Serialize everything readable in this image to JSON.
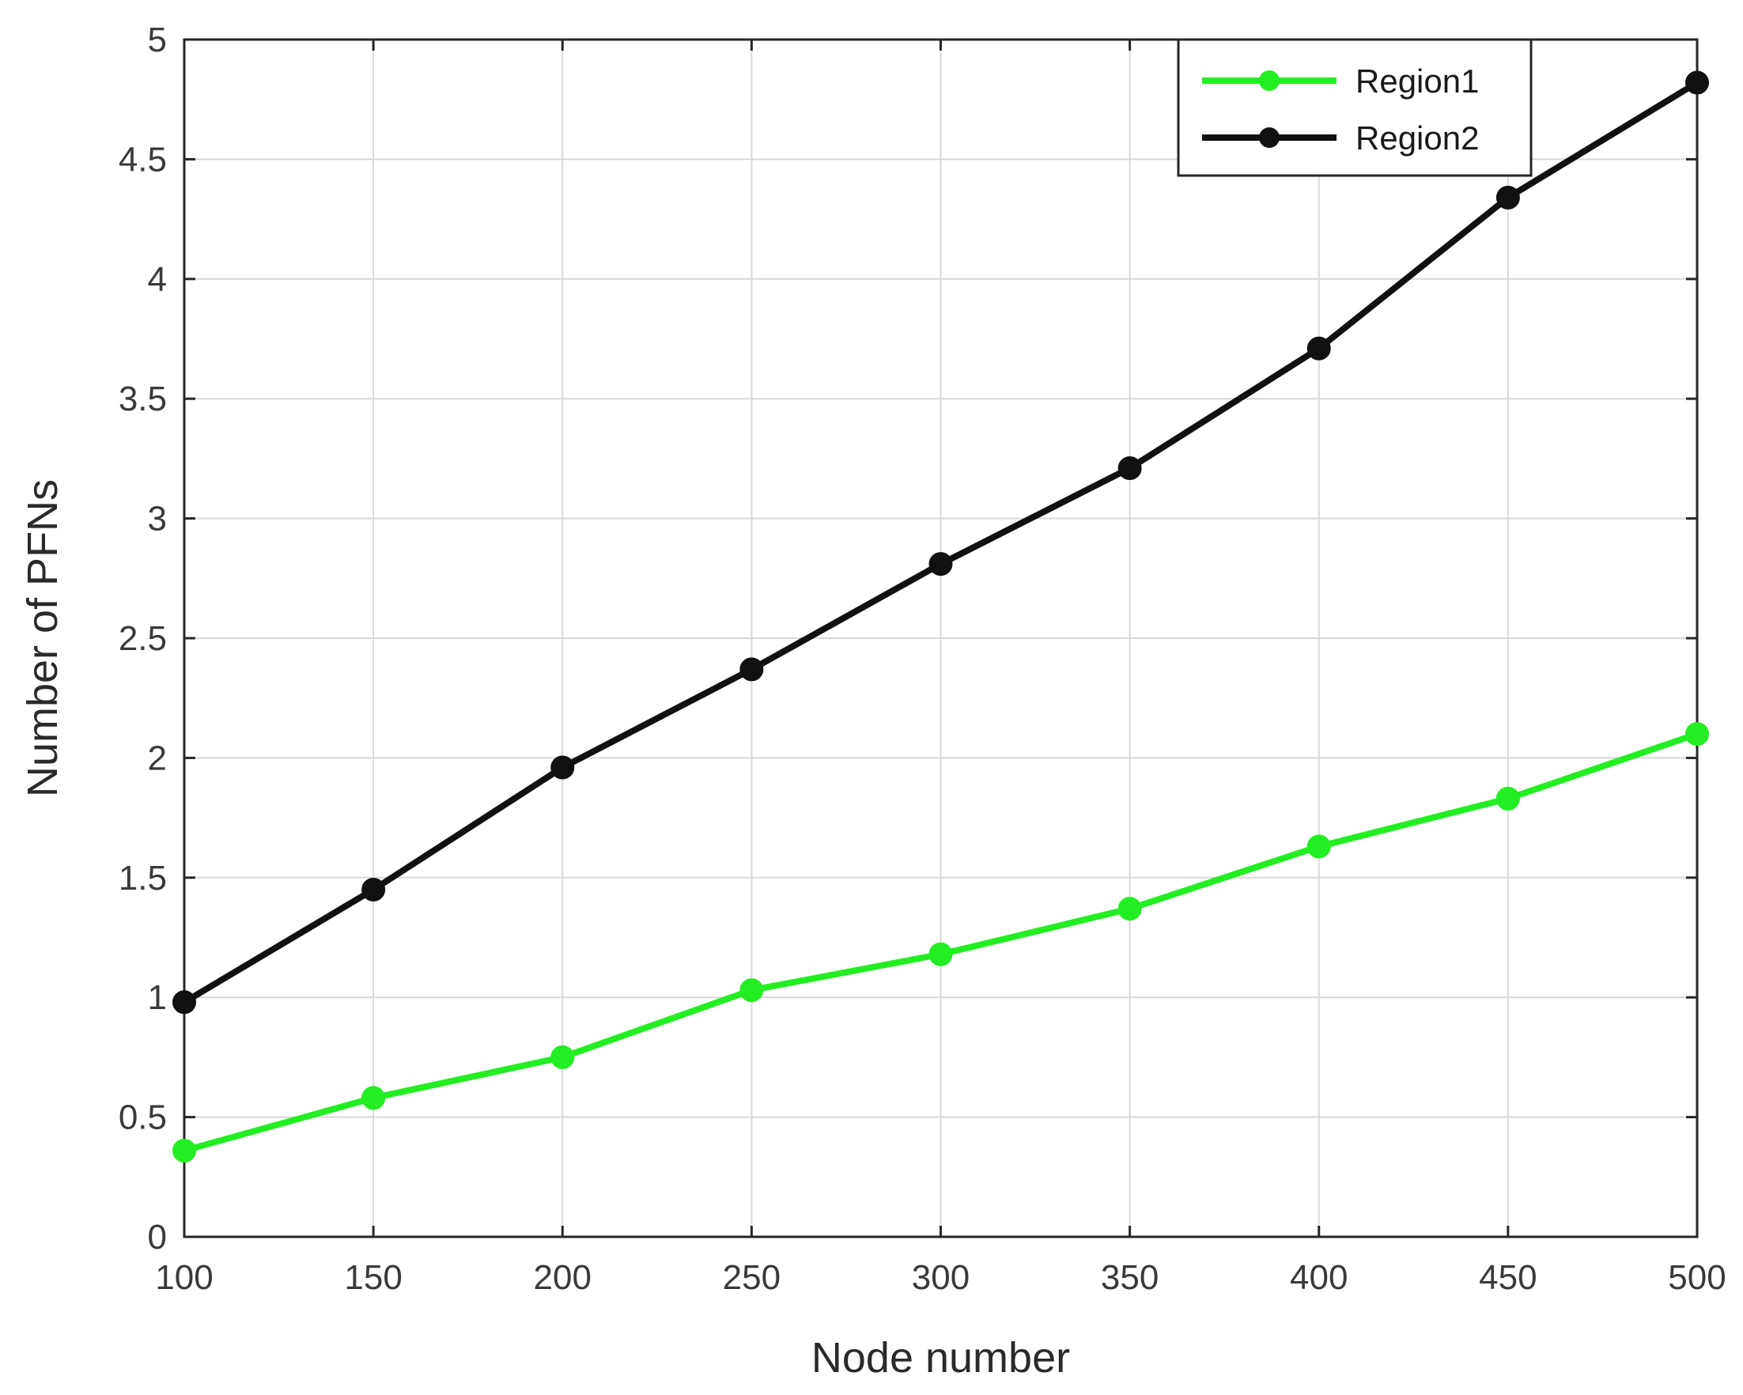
{
  "chart_data": {
    "type": "line",
    "title": "",
    "xlabel": "Node number",
    "ylabel": "Number of PFNs",
    "xlim": [
      100,
      500
    ],
    "ylim": [
      0,
      5
    ],
    "xticks": [
      100,
      150,
      200,
      250,
      300,
      350,
      400,
      450,
      500
    ],
    "xtick_labels": [
      "100",
      "150",
      "200",
      "250",
      "300",
      "350",
      "400",
      "450",
      "500"
    ],
    "yticks": [
      0,
      0.5,
      1,
      1.5,
      2,
      2.5,
      3,
      3.5,
      4,
      4.5,
      5
    ],
    "ytick_labels": [
      "0",
      "0.5",
      "1",
      "1.5",
      "2",
      "2.5",
      "3",
      "3.5",
      "4",
      "4.5",
      "5"
    ],
    "grid": true,
    "legend_position": "top-right",
    "x": [
      100,
      150,
      200,
      250,
      300,
      350,
      400,
      450,
      500
    ],
    "series": [
      {
        "name": "Region1",
        "color": "#22ee22",
        "marker": "circle",
        "values": [
          0.36,
          0.58,
          0.75,
          1.03,
          1.18,
          1.37,
          1.63,
          1.83,
          2.1
        ]
      },
      {
        "name": "Region2",
        "color": "#111111",
        "marker": "circle",
        "values": [
          0.98,
          1.45,
          1.96,
          2.37,
          2.81,
          3.21,
          3.71,
          4.34,
          4.82
        ]
      }
    ]
  }
}
